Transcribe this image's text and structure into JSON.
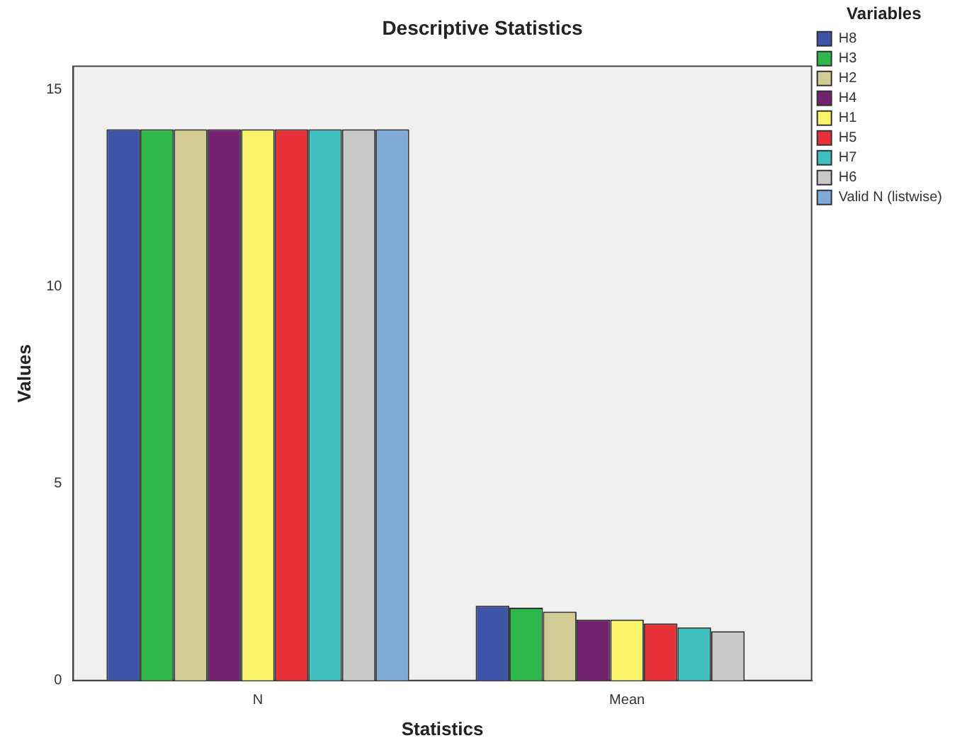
{
  "chart_data": {
    "type": "bar",
    "title": "Descriptive Statistics",
    "xlabel": "Statistics",
    "ylabel": "Values",
    "legend_title": "Variables",
    "categories": [
      "N",
      "Mean"
    ],
    "series": [
      {
        "name": "H8",
        "color": "#3d55a8",
        "values": [
          14,
          1.9
        ]
      },
      {
        "name": "H3",
        "color": "#2eb74a",
        "values": [
          14,
          1.85
        ]
      },
      {
        "name": "H2",
        "color": "#d3cb94",
        "values": [
          14,
          1.75
        ]
      },
      {
        "name": "H4",
        "color": "#74226f",
        "values": [
          14,
          1.55
        ]
      },
      {
        "name": "H1",
        "color": "#f9f36a",
        "values": [
          14,
          1.55
        ]
      },
      {
        "name": "H5",
        "color": "#e83138",
        "values": [
          14,
          1.45
        ]
      },
      {
        "name": "H7",
        "color": "#3fbfc0",
        "values": [
          14,
          1.35
        ]
      },
      {
        "name": "H6",
        "color": "#c8c8c8",
        "values": [
          14,
          1.25
        ]
      },
      {
        "name": "Valid N (listwise)",
        "color": "#7faad8",
        "values": [
          14,
          null
        ]
      }
    ],
    "ylim": [
      0,
      15.6
    ],
    "yticks": [
      0,
      5,
      10,
      15
    ],
    "grid": false,
    "legend": "right"
  }
}
